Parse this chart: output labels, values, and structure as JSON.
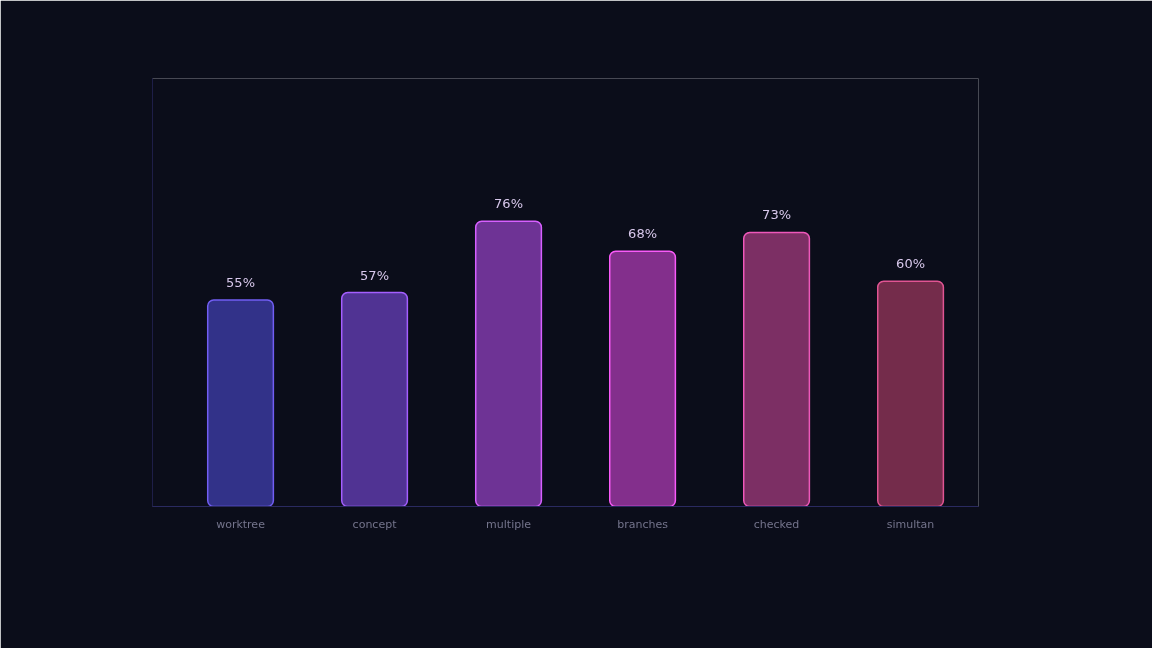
{
  "chart_data": {
    "type": "bar",
    "categories": [
      "worktree",
      "concept",
      "multiple",
      "branches",
      "checked",
      "simultan"
    ],
    "values": [
      55,
      57,
      76,
      68,
      73,
      60
    ],
    "value_labels": [
      "55%",
      "57%",
      "76%",
      "68%",
      "73%",
      "60%"
    ],
    "colors": [
      "#35358f",
      "#54369a",
      "#74369c",
      "#8a3292",
      "#833168",
      "#7a2e4e"
    ],
    "grid": false
  }
}
